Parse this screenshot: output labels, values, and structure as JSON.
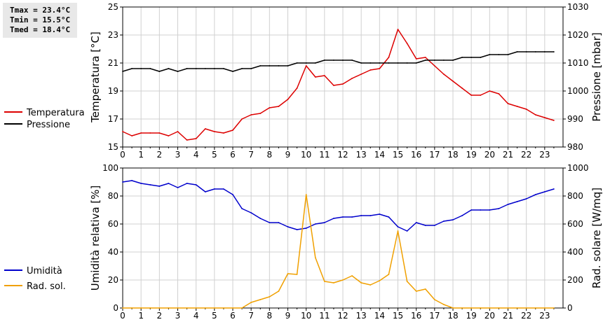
{
  "stats": {
    "tmax": "Tmax = 23.4°C",
    "tmin": "Tmin = 15.5°C",
    "tmed": "Tmed = 18.4°C"
  },
  "legend_top": [
    {
      "label": "Temperatura",
      "color": "#dd0000"
    },
    {
      "label": "Pressione",
      "color": "#000000"
    }
  ],
  "legend_bottom": [
    {
      "label": "Umidità",
      "color": "#0000cc"
    },
    {
      "label": "Rad. sol.",
      "color": "#f0a000"
    }
  ],
  "chart_data": [
    {
      "type": "line",
      "xlim": [
        0,
        24
      ],
      "x_ticks": [
        0,
        1,
        2,
        3,
        4,
        5,
        6,
        7,
        8,
        9,
        10,
        11,
        12,
        13,
        14,
        15,
        16,
        17,
        18,
        19,
        20,
        21,
        22,
        23
      ],
      "grid": true,
      "y_left": {
        "label": "Temperatura [°C]",
        "ylim": [
          15,
          25
        ],
        "ticks": [
          15,
          17,
          19,
          21,
          23,
          25
        ]
      },
      "y_right": {
        "label": "Pressione [mbar]",
        "ylim": [
          980,
          1030
        ],
        "ticks": [
          980,
          990,
          1000,
          1010,
          1020,
          1030
        ]
      },
      "series": [
        {
          "name": "Temperatura",
          "axis": "left",
          "color": "#dd0000",
          "x": [
            0,
            0.5,
            1,
            1.5,
            2,
            2.5,
            3,
            3.5,
            4,
            4.5,
            5,
            5.5,
            6,
            6.5,
            7,
            7.5,
            8,
            8.5,
            9,
            9.5,
            10,
            10.5,
            11,
            11.5,
            12,
            12.5,
            13,
            13.5,
            14,
            14.5,
            15,
            15.5,
            16,
            16.5,
            17,
            17.5,
            18,
            18.5,
            19,
            19.5,
            20,
            20.5,
            21,
            21.5,
            22,
            22.5,
            23,
            23.5
          ],
          "values": [
            16.1,
            15.8,
            16.0,
            16.0,
            16.0,
            15.8,
            16.1,
            15.5,
            15.6,
            16.3,
            16.1,
            16.0,
            16.2,
            17.0,
            17.3,
            17.4,
            17.8,
            17.9,
            18.4,
            19.2,
            20.8,
            20.0,
            20.1,
            19.4,
            19.5,
            19.9,
            20.2,
            20.5,
            20.6,
            21.4,
            23.4,
            22.4,
            21.3,
            21.4,
            20.8,
            20.2,
            19.7,
            19.2,
            18.7,
            18.7,
            19.0,
            18.8,
            18.1,
            17.9,
            17.7,
            17.3,
            17.1,
            16.9
          ]
        },
        {
          "name": "Pressione",
          "axis": "right",
          "color": "#000000",
          "x": [
            0,
            0.5,
            1,
            1.5,
            2,
            2.5,
            3,
            3.5,
            4,
            4.5,
            5,
            5.5,
            6,
            6.5,
            7,
            7.5,
            8,
            8.5,
            9,
            9.5,
            10,
            10.5,
            11,
            11.5,
            12,
            12.5,
            13,
            13.5,
            14,
            14.5,
            15,
            15.5,
            16,
            16.5,
            17,
            17.5,
            18,
            18.5,
            19,
            19.5,
            20,
            20.5,
            21,
            21.5,
            22,
            22.5,
            23,
            23.5
          ],
          "values": [
            1007,
            1008,
            1008,
            1008,
            1007,
            1008,
            1007,
            1008,
            1008,
            1008,
            1008,
            1008,
            1007,
            1008,
            1008,
            1009,
            1009,
            1009,
            1009,
            1010,
            1010,
            1010,
            1011,
            1011,
            1011,
            1011,
            1010,
            1010,
            1010,
            1010,
            1010,
            1010,
            1010,
            1011,
            1011,
            1011,
            1011,
            1012,
            1012,
            1012,
            1013,
            1013,
            1013,
            1014,
            1014,
            1014,
            1014,
            1014
          ]
        }
      ]
    },
    {
      "type": "line",
      "xlim": [
        0,
        24
      ],
      "x_ticks": [
        0,
        1,
        2,
        3,
        4,
        5,
        6,
        7,
        8,
        9,
        10,
        11,
        12,
        13,
        14,
        15,
        16,
        17,
        18,
        19,
        20,
        21,
        22,
        23
      ],
      "grid": true,
      "y_left": {
        "label": "Umidità relativa [%]",
        "ylim": [
          0,
          100
        ],
        "ticks": [
          0,
          20,
          40,
          60,
          80,
          100
        ]
      },
      "y_right": {
        "label": "Rad. solare [W/mq]",
        "ylim": [
          0,
          1000
        ],
        "ticks": [
          0,
          200,
          400,
          600,
          800,
          1000
        ]
      },
      "series": [
        {
          "name": "Umidità",
          "axis": "left",
          "color": "#0000cc",
          "x": [
            0,
            0.5,
            1,
            1.5,
            2,
            2.5,
            3,
            3.5,
            4,
            4.5,
            5,
            5.5,
            6,
            6.5,
            7,
            7.5,
            8,
            8.5,
            9,
            9.5,
            10,
            10.5,
            11,
            11.5,
            12,
            12.5,
            13,
            13.5,
            14,
            14.5,
            15,
            15.5,
            16,
            16.5,
            17,
            17.5,
            18,
            18.5,
            19,
            19.5,
            20,
            20.5,
            21,
            21.5,
            22,
            22.5,
            23,
            23.5
          ],
          "values": [
            90,
            91,
            89,
            88,
            87,
            89,
            86,
            89,
            88,
            83,
            85,
            85,
            81,
            71,
            68,
            64,
            61,
            61,
            58,
            56,
            57,
            60,
            61,
            64,
            65,
            65,
            66,
            66,
            67,
            65,
            58,
            55,
            61,
            59,
            59,
            62,
            63,
            66,
            70,
            70,
            70,
            71,
            74,
            76,
            78,
            81,
            83,
            85
          ]
        },
        {
          "name": "Rad. sol.",
          "axis": "right",
          "color": "#f0a000",
          "x": [
            0,
            0.5,
            1,
            1.5,
            2,
            2.5,
            3,
            3.5,
            4,
            4.5,
            5,
            5.5,
            6,
            6.5,
            7,
            7.5,
            8,
            8.5,
            9,
            9.5,
            10,
            10.5,
            11,
            11.5,
            12,
            12.5,
            13,
            13.5,
            14,
            14.5,
            15,
            15.5,
            16,
            16.5,
            17,
            17.5,
            18,
            18.5,
            19,
            19.5,
            20,
            20.5,
            21,
            21.5,
            22,
            22.5,
            23,
            23.5
          ],
          "values": [
            0,
            0,
            0,
            0,
            0,
            0,
            0,
            0,
            0,
            0,
            0,
            0,
            0,
            0,
            40,
            60,
            80,
            120,
            245,
            240,
            810,
            360,
            190,
            180,
            200,
            230,
            180,
            165,
            195,
            240,
            550,
            190,
            120,
            135,
            60,
            25,
            0,
            0,
            0,
            0,
            0,
            0,
            0,
            0,
            0,
            0,
            0,
            0
          ]
        }
      ]
    }
  ]
}
